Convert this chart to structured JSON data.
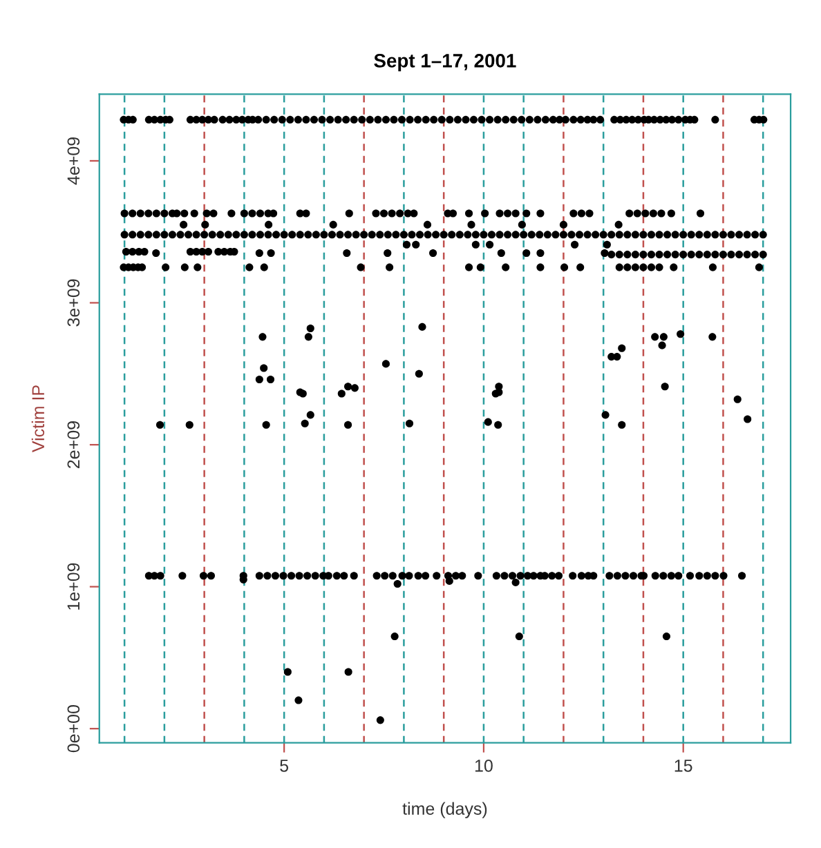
{
  "chart_data": {
    "type": "scatter",
    "title": "Sept 1–17, 2001",
    "xlabel": "time (days)",
    "ylabel": "Victim IP",
    "xlim": [
      0.37,
      17.69
    ],
    "ylim": [
      -100000000.0,
      4470000000.0
    ],
    "xticks": [
      5,
      10,
      15
    ],
    "yticks": [
      {
        "value": 0,
        "label": "0e+00"
      },
      {
        "value": 1000000000.0,
        "label": "1e+09"
      },
      {
        "value": 2000000000.0,
        "label": "2e+09"
      },
      {
        "value": 3000000000.0,
        "label": "3e+09"
      },
      {
        "value": 4000000000.0,
        "label": "4e+09"
      }
    ],
    "marker": "circle",
    "grid": false,
    "ref_lines": [
      {
        "axis": "x",
        "value": 1,
        "color": "#2a9d9d",
        "line_style": "dashed"
      },
      {
        "axis": "x",
        "value": 2,
        "color": "#2a9d9d",
        "line_style": "dashed"
      },
      {
        "axis": "x",
        "value": 3,
        "color": "#c0504d",
        "line_style": "dashed"
      },
      {
        "axis": "x",
        "value": 4,
        "color": "#2a9d9d",
        "line_style": "dashed"
      },
      {
        "axis": "x",
        "value": 5,
        "color": "#2a9d9d",
        "line_style": "dashed"
      },
      {
        "axis": "x",
        "value": 6,
        "color": "#2a9d9d",
        "line_style": "dashed"
      },
      {
        "axis": "x",
        "value": 7,
        "color": "#c0504d",
        "line_style": "dashed"
      },
      {
        "axis": "x",
        "value": 8,
        "color": "#2a9d9d",
        "line_style": "dashed"
      },
      {
        "axis": "x",
        "value": 9,
        "color": "#c0504d",
        "line_style": "dashed"
      },
      {
        "axis": "x",
        "value": 10,
        "color": "#2a9d9d",
        "line_style": "dashed"
      },
      {
        "axis": "x",
        "value": 11,
        "color": "#2a9d9d",
        "line_style": "dashed"
      },
      {
        "axis": "x",
        "value": 12,
        "color": "#c0504d",
        "line_style": "dashed"
      },
      {
        "axis": "x",
        "value": 13,
        "color": "#2a9d9d",
        "line_style": "dashed"
      },
      {
        "axis": "x",
        "value": 14,
        "color": "#c0504d",
        "line_style": "dashed"
      },
      {
        "axis": "x",
        "value": 15,
        "color": "#2a9d9d",
        "line_style": "dashed"
      },
      {
        "axis": "x",
        "value": 16,
        "color": "#c0504d",
        "line_style": "dashed"
      },
      {
        "axis": "x",
        "value": 17,
        "color": "#2a9d9d",
        "line_style": "dashed"
      }
    ],
    "series": [
      {
        "color": "#000000",
        "x": [
          0.98,
          1.1,
          1.21,
          1.61,
          1.75,
          1.9,
          2.03,
          2.13,
          2.65,
          2.8,
          2.95,
          3.1,
          3.25,
          3.46,
          3.63,
          3.8,
          3.95,
          4.1,
          4.21,
          4.35,
          4.55,
          4.75,
          4.95,
          5.15,
          5.35,
          5.55,
          5.75,
          5.95,
          6.15,
          6.35,
          6.55,
          6.75,
          6.95,
          7.15,
          7.35,
          7.55,
          7.75,
          7.95,
          8.15,
          8.35,
          8.55,
          8.75,
          8.95,
          9.15,
          9.35,
          9.55,
          9.75,
          9.95,
          10.15,
          10.35,
          10.55,
          10.75,
          10.95,
          11.15,
          11.35,
          11.55,
          11.74,
          11.9,
          12.05,
          12.25,
          12.43,
          12.6,
          12.75,
          12.92,
          13.27,
          13.42,
          13.57,
          13.72,
          13.87,
          14.02,
          14.13,
          14.27,
          14.42,
          14.57,
          14.72,
          14.88,
          15.05,
          15.17,
          15.28,
          15.8,
          16.78,
          16.9,
          17.01
        ],
        "values": [
          4290000000.0,
          4290000000.0,
          4290000000.0,
          4290000000.0,
          4290000000.0,
          4290000000.0,
          4290000000.0,
          4290000000.0,
          4290000000.0,
          4290000000.0,
          4290000000.0,
          4290000000.0,
          4290000000.0,
          4290000000.0,
          4290000000.0,
          4290000000.0,
          4290000000.0,
          4290000000.0,
          4290000000.0,
          4290000000.0,
          4290000000.0,
          4290000000.0,
          4290000000.0,
          4290000000.0,
          4290000000.0,
          4290000000.0,
          4290000000.0,
          4290000000.0,
          4290000000.0,
          4290000000.0,
          4290000000.0,
          4290000000.0,
          4290000000.0,
          4290000000.0,
          4290000000.0,
          4290000000.0,
          4290000000.0,
          4290000000.0,
          4290000000.0,
          4290000000.0,
          4290000000.0,
          4290000000.0,
          4290000000.0,
          4290000000.0,
          4290000000.0,
          4290000000.0,
          4290000000.0,
          4290000000.0,
          4290000000.0,
          4290000000.0,
          4290000000.0,
          4290000000.0,
          4290000000.0,
          4290000000.0,
          4290000000.0,
          4290000000.0,
          4290000000.0,
          4290000000.0,
          4290000000.0,
          4290000000.0,
          4290000000.0,
          4290000000.0,
          4290000000.0,
          4290000000.0,
          4290000000.0,
          4290000000.0,
          4290000000.0,
          4290000000.0,
          4290000000.0,
          4290000000.0,
          4290000000.0,
          4290000000.0,
          4290000000.0,
          4290000000.0,
          4290000000.0,
          4290000000.0,
          4290000000.0,
          4290000000.0,
          4290000000.0,
          4290000000.0,
          4290000000.0,
          4290000000.0,
          4290000000.0
        ]
      },
      {
        "color": "#000000",
        "x": [
          1.0,
          1.2,
          1.4,
          1.6,
          1.8,
          2.0,
          2.2,
          2.4,
          2.6,
          2.8,
          3.0,
          3.2,
          3.4,
          3.6,
          3.8,
          4.0,
          4.2,
          4.4,
          4.6,
          4.8,
          5.0,
          5.2,
          5.4,
          5.6,
          5.8,
          6.0,
          6.2,
          6.4,
          6.6,
          6.8,
          7.0,
          7.2,
          7.4,
          7.6,
          7.8,
          8.0,
          8.2,
          8.4,
          8.6,
          8.8,
          9.0,
          9.2,
          9.4,
          9.6,
          9.8,
          10.0,
          10.2,
          10.4,
          10.6,
          10.8,
          11.0,
          11.2,
          11.4,
          11.6,
          11.8,
          12.0,
          12.2,
          12.4,
          12.6,
          12.8,
          13.0,
          13.2,
          13.4,
          13.6,
          13.8,
          14.0,
          14.2,
          14.4,
          14.6,
          14.8,
          15.0,
          15.2,
          15.4,
          15.6,
          15.8,
          16.0,
          16.2,
          16.4,
          16.6,
          16.8,
          17.0
        ],
        "values": [
          3480000000.0,
          3480000000.0,
          3480000000.0,
          3480000000.0,
          3480000000.0,
          3480000000.0,
          3480000000.0,
          3480000000.0,
          3480000000.0,
          3480000000.0,
          3480000000.0,
          3480000000.0,
          3480000000.0,
          3480000000.0,
          3480000000.0,
          3480000000.0,
          3480000000.0,
          3480000000.0,
          3480000000.0,
          3480000000.0,
          3480000000.0,
          3480000000.0,
          3480000000.0,
          3480000000.0,
          3480000000.0,
          3480000000.0,
          3480000000.0,
          3480000000.0,
          3480000000.0,
          3480000000.0,
          3480000000.0,
          3480000000.0,
          3480000000.0,
          3480000000.0,
          3480000000.0,
          3480000000.0,
          3480000000.0,
          3480000000.0,
          3480000000.0,
          3480000000.0,
          3480000000.0,
          3480000000.0,
          3480000000.0,
          3480000000.0,
          3480000000.0,
          3480000000.0,
          3480000000.0,
          3480000000.0,
          3480000000.0,
          3480000000.0,
          3480000000.0,
          3480000000.0,
          3480000000.0,
          3480000000.0,
          3480000000.0,
          3480000000.0,
          3480000000.0,
          3480000000.0,
          3480000000.0,
          3480000000.0,
          3480000000.0,
          3480000000.0,
          3480000000.0,
          3480000000.0,
          3480000000.0,
          3480000000.0,
          3480000000.0,
          3480000000.0,
          3480000000.0,
          3480000000.0,
          3480000000.0,
          3480000000.0,
          3480000000.0,
          3480000000.0,
          3480000000.0,
          3480000000.0,
          3480000000.0,
          3480000000.0,
          3480000000.0,
          3480000000.0,
          3480000000.0
        ]
      },
      {
        "color": "#000000",
        "x": [
          13.2,
          13.4,
          13.6,
          13.8,
          14.0,
          14.2,
          14.4,
          14.6,
          14.8,
          15.0,
          15.2,
          15.4,
          15.6,
          15.8,
          16.0,
          16.2,
          16.4,
          16.6,
          16.8,
          17.0
        ],
        "values": [
          3340000000.0,
          3340000000.0,
          3340000000.0,
          3340000000.0,
          3340000000.0,
          3340000000.0,
          3340000000.0,
          3340000000.0,
          3340000000.0,
          3340000000.0,
          3340000000.0,
          3340000000.0,
          3340000000.0,
          3340000000.0,
          3340000000.0,
          3340000000.0,
          3340000000.0,
          3340000000.0,
          3340000000.0,
          3340000000.0
        ]
      },
      {
        "color": "#000000",
        "x": [
          1.0,
          1.2,
          1.4,
          1.6,
          1.8,
          2.0,
          2.2,
          2.31,
          2.5,
          2.75,
          3.06,
          3.23,
          3.68,
          4.0,
          4.2,
          4.4,
          4.6,
          4.73,
          5.4,
          5.55,
          6.63,
          7.3,
          7.5,
          7.7,
          7.9,
          8.1,
          8.25,
          9.1,
          9.23,
          9.63,
          10.03,
          10.4,
          10.6,
          10.8,
          11.07,
          11.42,
          12.25,
          12.45,
          12.65,
          13.65,
          13.85,
          14.05,
          14.25,
          14.45,
          14.7,
          15.43
        ],
        "values": [
          3630000000.0,
          3630000000.0,
          3630000000.0,
          3630000000.0,
          3630000000.0,
          3630000000.0,
          3630000000.0,
          3630000000.0,
          3630000000.0,
          3630000000.0,
          3630000000.0,
          3630000000.0,
          3630000000.0,
          3630000000.0,
          3630000000.0,
          3630000000.0,
          3630000000.0,
          3630000000.0,
          3630000000.0,
          3630000000.0,
          3630000000.0,
          3630000000.0,
          3630000000.0,
          3630000000.0,
          3630000000.0,
          3630000000.0,
          3630000000.0,
          3630000000.0,
          3630000000.0,
          3630000000.0,
          3630000000.0,
          3630000000.0,
          3630000000.0,
          3630000000.0,
          3630000000.0,
          3630000000.0,
          3630000000.0,
          3630000000.0,
          3630000000.0,
          3630000000.0,
          3630000000.0,
          3630000000.0,
          3630000000.0,
          3630000000.0,
          3630000000.0,
          3630000000.0
        ]
      },
      {
        "color": "#000000",
        "x": [
          1.04,
          1.2,
          1.36,
          1.5,
          2.65,
          2.8,
          2.95,
          3.1,
          3.35,
          3.5,
          3.65,
          3.75,
          1.79,
          4.38,
          4.67,
          6.57,
          7.59,
          8.73,
          10.44,
          11.07,
          11.42,
          13.03
        ],
        "values": [
          3360000000.0,
          3360000000.0,
          3360000000.0,
          3360000000.0,
          3360000000.0,
          3360000000.0,
          3360000000.0,
          3360000000.0,
          3360000000.0,
          3360000000.0,
          3360000000.0,
          3360000000.0,
          3350000000.0,
          3350000000.0,
          3350000000.0,
          3350000000.0,
          3350000000.0,
          3350000000.0,
          3350000000.0,
          3350000000.0,
          3350000000.0,
          3350000000.0
        ]
      },
      {
        "color": "#000000",
        "x": [
          0.98,
          1.1,
          1.22,
          1.34,
          1.44,
          2.03,
          2.51,
          2.83,
          4.13,
          4.5,
          6.92,
          7.64,
          9.63,
          9.92,
          10.55,
          11.42,
          12.02,
          12.42,
          13.4,
          13.6,
          13.8,
          14.0,
          14.2,
          14.4,
          14.76,
          15.74,
          16.9
        ],
        "values": [
          3250000000.0,
          3250000000.0,
          3250000000.0,
          3250000000.0,
          3250000000.0,
          3250000000.0,
          3250000000.0,
          3250000000.0,
          3250000000.0,
          3250000000.0,
          3250000000.0,
          3250000000.0,
          3250000000.0,
          3250000000.0,
          3250000000.0,
          3250000000.0,
          3250000000.0,
          3250000000.0,
          3250000000.0,
          3250000000.0,
          3250000000.0,
          3250000000.0,
          3250000000.0,
          3250000000.0,
          3250000000.0,
          3250000000.0,
          3250000000.0
        ]
      },
      {
        "color": "#000000",
        "x": [
          2.48,
          3.02,
          4.61,
          6.23,
          8.59,
          9.69,
          10.96,
          12.0,
          13.38,
          8.07,
          8.3,
          9.8,
          10.15,
          12.28,
          13.09
        ],
        "values": [
          3550000000.0,
          3550000000.0,
          3550000000.0,
          3550000000.0,
          3550000000.0,
          3550000000.0,
          3550000000.0,
          3550000000.0,
          3550000000.0,
          3410000000.0,
          3410000000.0,
          3410000000.0,
          3410000000.0,
          3410000000.0,
          3410000000.0
        ]
      },
      {
        "color": "#000000",
        "x": [
          1.61,
          1.75,
          1.9,
          2.45,
          2.98,
          3.17,
          3.98,
          4.38,
          4.58,
          4.78,
          4.98,
          5.18,
          5.38,
          5.58,
          5.78,
          5.98,
          6.11,
          6.32,
          6.5,
          6.75,
          7.32,
          7.52,
          7.72,
          7.96,
          8.13,
          8.36,
          8.54,
          8.82,
          9.11,
          9.3,
          9.46,
          9.86,
          10.32,
          10.52,
          10.72,
          10.92,
          11.1,
          11.25,
          11.42,
          11.53,
          11.71,
          11.88,
          12.23,
          12.45,
          12.62,
          12.75,
          13.15,
          13.35,
          13.55,
          13.75,
          13.95,
          14.01,
          14.3,
          14.5,
          14.7,
          14.88,
          15.17,
          15.4,
          15.6,
          15.8,
          16.01,
          16.47
        ],
        "values": [
          1077000000.0,
          1077000000.0,
          1077000000.0,
          1077000000.0,
          1077000000.0,
          1077000000.0,
          1077000000.0,
          1077000000.0,
          1077000000.0,
          1077000000.0,
          1077000000.0,
          1077000000.0,
          1077000000.0,
          1077000000.0,
          1077000000.0,
          1077000000.0,
          1077000000.0,
          1077000000.0,
          1077000000.0,
          1077000000.0,
          1077000000.0,
          1077000000.0,
          1077000000.0,
          1077000000.0,
          1077000000.0,
          1077000000.0,
          1077000000.0,
          1077000000.0,
          1077000000.0,
          1077000000.0,
          1077000000.0,
          1077000000.0,
          1077000000.0,
          1077000000.0,
          1077000000.0,
          1077000000.0,
          1077000000.0,
          1077000000.0,
          1077000000.0,
          1077000000.0,
          1077000000.0,
          1077000000.0,
          1077000000.0,
          1077000000.0,
          1077000000.0,
          1077000000.0,
          1077000000.0,
          1077000000.0,
          1077000000.0,
          1077000000.0,
          1077000000.0,
          1077000000.0,
          1077000000.0,
          1077000000.0,
          1077000000.0,
          1077000000.0,
          1077000000.0,
          1077000000.0,
          1077000000.0,
          1077000000.0,
          1077000000.0,
          1077000000.0
        ]
      },
      {
        "color": "#000000",
        "x": [
          1.89,
          2.63,
          4.46,
          4.49,
          4.38,
          4.66,
          4.55,
          5.66,
          5.61,
          5.4,
          5.47,
          5.52,
          5.66,
          6.44,
          6.6,
          6.77,
          6.6,
          7.55,
          8.38,
          8.46,
          8.14,
          10.11,
          10.36,
          10.3,
          10.38,
          10.38,
          13.05,
          13.2,
          13.34,
          13.46,
          13.46,
          14.29,
          14.51,
          14.47,
          14.54,
          14.93,
          15.73,
          16.36,
          16.61,
          7.77,
          10.89,
          14.58,
          5.09,
          6.61,
          5.36,
          7.41,
          3.98,
          7.84,
          9.14,
          10.8
        ],
        "values": [
          2140000000.0,
          2140000000.0,
          2760000000.0,
          2540000000.0,
          2460000000.0,
          2460000000.0,
          2140000000.0,
          2820000000.0,
          2760000000.0,
          2370000000.0,
          2360000000.0,
          2150000000.0,
          2210000000.0,
          2360000000.0,
          2410000000.0,
          2400000000.0,
          2140000000.0,
          2570000000.0,
          2500000000.0,
          2830000000.0,
          2150000000.0,
          2160000000.0,
          2140000000.0,
          2360000000.0,
          2370000000.0,
          2410000000.0,
          2210000000.0,
          2620000000.0,
          2620000000.0,
          2680000000.0,
          2140000000.0,
          2760000000.0,
          2760000000.0,
          2700000000.0,
          2410000000.0,
          2780000000.0,
          2760000000.0,
          2320000000.0,
          2180000000.0,
          650000000.0,
          650000000.0,
          650000000.0,
          400000000.0,
          400000000.0,
          200000000.0,
          60000000.0,
          1050000000.0,
          1020000000.0,
          1040000000.0,
          1030000000.0
        ]
      }
    ]
  }
}
